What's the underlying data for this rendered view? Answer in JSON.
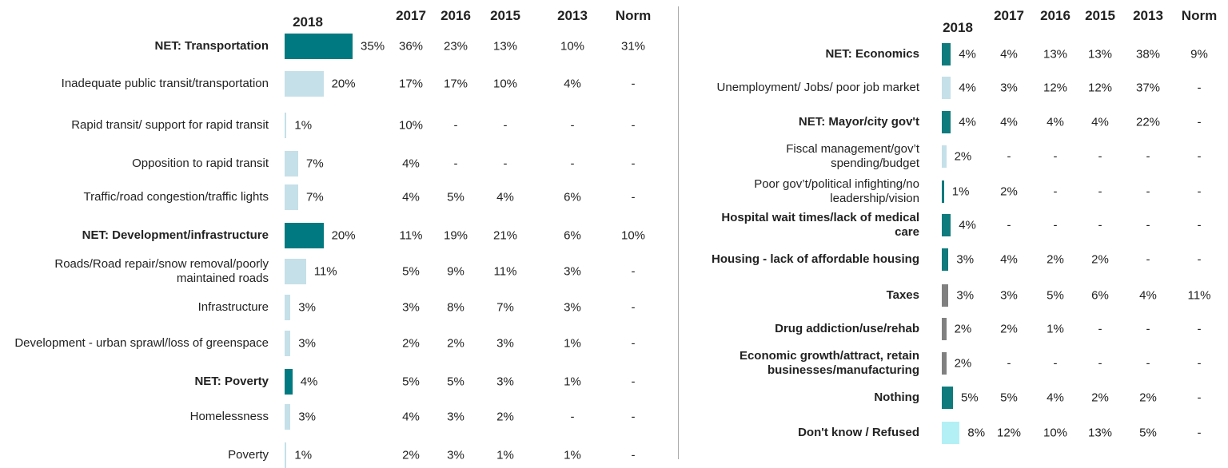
{
  "chart_data": [
    {
      "type": "bar",
      "orientation": "horizontal",
      "xlim": [
        0,
        100
      ],
      "bar_header": "2018",
      "categories": [
        "NET: Transportation",
        "Inadequate public transit/transportation",
        "Rapid transit/ support for rapid transit",
        "Opposition to rapid transit",
        "Traffic/road congestion/traffic lights",
        "NET: Development/infrastructure",
        "Roads/Road repair/snow removal/poorly maintained roads",
        "Infrastructure",
        "Development - urban sprawl/loss of greenspace",
        "NET: Poverty",
        "Homelessness",
        "Poverty"
      ],
      "bold": [
        true,
        false,
        false,
        false,
        false,
        true,
        false,
        false,
        false,
        true,
        false,
        false
      ],
      "values": [
        35,
        20,
        1,
        7,
        7,
        20,
        11,
        3,
        3,
        4,
        3,
        1
      ],
      "value_labels": [
        "35%",
        "20%",
        "1%",
        "7%",
        "7%",
        "20%",
        "11%",
        "3%",
        "3%",
        "4%",
        "3%",
        "1%"
      ],
      "colors": [
        "#007a80",
        "#c5e0e8",
        "#c5e0e8",
        "#c5e0e8",
        "#c5e0e8",
        "#007a80",
        "#c5e0e8",
        "#c5e0e8",
        "#c5e0e8",
        "#007a80",
        "#c5e0e8",
        "#c5e0e8"
      ],
      "columns": [
        {
          "name": "2017",
          "values": [
            36,
            17,
            10,
            4,
            4,
            11,
            5,
            3,
            2,
            5,
            4,
            2
          ],
          "value_labels": [
            "36%",
            "17%",
            "10%",
            "4%",
            "4%",
            "11%",
            "5%",
            "3%",
            "2%",
            "5%",
            "4%",
            "2%"
          ]
        },
        {
          "name": "2016",
          "values": [
            23,
            17,
            null,
            null,
            5,
            19,
            9,
            8,
            2,
            5,
            3,
            3
          ],
          "value_labels": [
            "23%",
            "17%",
            "-",
            "-",
            "5%",
            "19%",
            "9%",
            "8%",
            "2%",
            "5%",
            "3%",
            "3%"
          ]
        },
        {
          "name": "2015",
          "values": [
            13,
            10,
            null,
            null,
            4,
            21,
            11,
            7,
            3,
            3,
            2,
            1
          ],
          "value_labels": [
            "13%",
            "10%",
            "-",
            "-",
            "4%",
            "21%",
            "11%",
            "7%",
            "3%",
            "3%",
            "2%",
            "1%"
          ]
        },
        {
          "name": "2013",
          "values": [
            10,
            4,
            null,
            null,
            6,
            6,
            3,
            3,
            1,
            1,
            null,
            1
          ],
          "value_labels": [
            "10%",
            "4%",
            "-",
            "-",
            "6%",
            "6%",
            "3%",
            "3%",
            "1%",
            "1%",
            "-",
            "1%"
          ]
        },
        {
          "name": "Norm",
          "values": [
            31,
            null,
            null,
            null,
            null,
            10,
            null,
            null,
            null,
            null,
            null,
            null
          ],
          "value_labels": [
            "31%",
            "-",
            "-",
            "-",
            "-",
            "10%",
            "-",
            "-",
            "-",
            "-",
            "-",
            "-"
          ]
        }
      ]
    },
    {
      "type": "bar",
      "orientation": "horizontal",
      "xlim": [
        0,
        100
      ],
      "bar_header": "2018",
      "categories": [
        "NET: Economics",
        "Unemployment/ Jobs/ poor job market",
        "NET: Mayor/city gov't",
        "Fiscal management/gov’t spending/budget",
        "Poor gov’t/political infighting/no leadership/vision",
        "Hospital wait times/lack of medical care",
        "Housing - lack of affordable housing",
        "Taxes",
        "Drug addiction/use/rehab",
        "Economic growth/attract, retain businesses/manufacturing",
        "Nothing",
        "Don't know / Refused"
      ],
      "bold": [
        true,
        false,
        true,
        false,
        false,
        true,
        true,
        true,
        true,
        true,
        true,
        true
      ],
      "values": [
        4,
        4,
        4,
        2,
        1,
        4,
        3,
        3,
        2,
        2,
        5,
        8
      ],
      "value_labels": [
        "4%",
        "4%",
        "4%",
        "2%",
        "1%",
        "4%",
        "3%",
        "3%",
        "2%",
        "2%",
        "5%",
        "8%"
      ],
      "colors": [
        "#0f7b7d",
        "#c5e0e8",
        "#0f7b7d",
        "#c5e0e8",
        "#0f7b7d",
        "#0f7b7d",
        "#0f7b7d",
        "#808080",
        "#808080",
        "#808080",
        "#0f7b7d",
        "#b3f0f5"
      ],
      "columns": [
        {
          "name": "2017",
          "values": [
            4,
            3,
            4,
            null,
            2,
            null,
            4,
            3,
            2,
            null,
            5,
            12
          ],
          "value_labels": [
            "4%",
            "3%",
            "4%",
            "-",
            "2%",
            "-",
            "4%",
            "3%",
            "2%",
            "-",
            "5%",
            "12%"
          ]
        },
        {
          "name": "2016",
          "values": [
            13,
            12,
            4,
            null,
            null,
            null,
            2,
            5,
            1,
            null,
            4,
            10
          ],
          "value_labels": [
            "13%",
            "12%",
            "4%",
            "-",
            "-",
            "-",
            "2%",
            "5%",
            "1%",
            "-",
            "4%",
            "10%"
          ]
        },
        {
          "name": "2015",
          "values": [
            13,
            12,
            4,
            null,
            null,
            null,
            2,
            6,
            null,
            null,
            2,
            13
          ],
          "value_labels": [
            "13%",
            "12%",
            "4%",
            "-",
            "-",
            "-",
            "2%",
            "6%",
            "-",
            "-",
            "2%",
            "13%"
          ]
        },
        {
          "name": "2013",
          "values": [
            38,
            37,
            22,
            null,
            null,
            null,
            null,
            4,
            null,
            null,
            2,
            5
          ],
          "value_labels": [
            "38%",
            "37%",
            "22%",
            "-",
            "-",
            "-",
            "-",
            "4%",
            "-",
            "-",
            "2%",
            "5%"
          ]
        },
        {
          "name": "Norm",
          "values": [
            9,
            null,
            null,
            null,
            null,
            null,
            null,
            11,
            null,
            null,
            null,
            null
          ],
          "value_labels": [
            "9%",
            "-",
            "-",
            "-",
            "-",
            "-",
            "-",
            "11%",
            "-",
            "-",
            "-",
            "-"
          ]
        }
      ]
    }
  ]
}
